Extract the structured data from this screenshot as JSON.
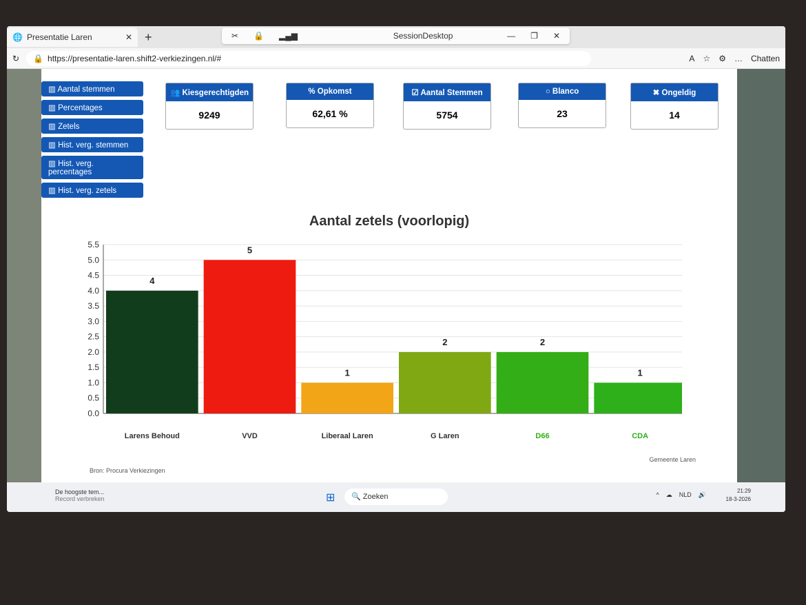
{
  "browser": {
    "tab_title": "Presentatie Laren",
    "session_title": "SessionDesktop",
    "url": "https://presentatie-laren.shift2-verkiezingen.nl/#",
    "copilot_label": "Chatten"
  },
  "sidebar": {
    "items": [
      {
        "label": "Aantal stemmen"
      },
      {
        "label": "Percentages"
      },
      {
        "label": "Zetels"
      },
      {
        "label": "Hist. verg. stemmen"
      },
      {
        "label": "Hist. verg. percentages"
      },
      {
        "label": "Hist. verg. zetels"
      }
    ]
  },
  "stats": [
    {
      "label": "Kiesgerechtigden",
      "value": "9249"
    },
    {
      "label": "Opkomst",
      "value": "62,61 %"
    },
    {
      "label": "Aantal Stemmen",
      "value": "5754"
    },
    {
      "label": "Blanco",
      "value": "23"
    },
    {
      "label": "Ongeldig",
      "value": "14"
    }
  ],
  "footer": {
    "source": "Bron: Procura Verkiezingen",
    "municipality": "Gemeente Laren"
  },
  "taskbar": {
    "search": "Zoeken",
    "notification": "De hoogste tem...",
    "notification_sub": "Record verbreken",
    "lang": "NLD",
    "time": "21:29",
    "date": "18-3-2026"
  },
  "colors": {
    "accent": "#1458b4"
  },
  "chart_data": {
    "type": "bar",
    "title": "Aantal zetels (voorlopig)",
    "categories": [
      "Larens Behoud",
      "VVD",
      "Liberaal Laren",
      "G Laren",
      "D66",
      "CDA"
    ],
    "values": [
      4,
      5,
      1,
      2,
      2,
      1
    ],
    "colors": [
      "#123d1c",
      "#ee1c10",
      "#f2a516",
      "#7fa813",
      "#34ae16",
      "#2db01a"
    ],
    "ylim": [
      0,
      5.5
    ],
    "yticks": [
      "0.0",
      "0.5",
      "1.0",
      "1.5",
      "2.0",
      "2.5",
      "3.0",
      "3.5",
      "4.0",
      "4.5",
      "5.0",
      "5.5"
    ],
    "grid": true,
    "legend": "none"
  }
}
